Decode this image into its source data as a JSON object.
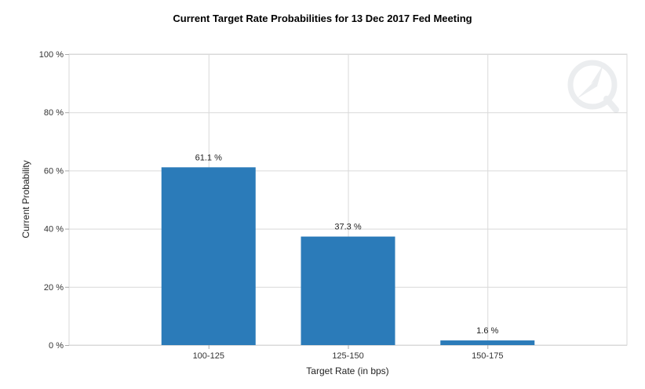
{
  "chart_data": {
    "type": "bar",
    "title": "Current Target Rate Probabilities for 13 Dec 2017 Fed Meeting",
    "xlabel": "Target Rate (in bps)",
    "ylabel": "Current Probability",
    "categories": [
      "100-125",
      "125-150",
      "150-175"
    ],
    "values": [
      61.1,
      37.3,
      1.6
    ],
    "data_labels": [
      "61.1 %",
      "37.3 %",
      "1.6 %"
    ],
    "ylim": [
      0,
      100
    ],
    "yticks": [
      0,
      20,
      40,
      60,
      80,
      100
    ],
    "ytick_labels": [
      "0 %",
      "20 %",
      "40 %",
      "60 %",
      "80 %",
      "100 %"
    ],
    "grid": true,
    "legend": "none",
    "colors": {
      "bar": "#2b7bb9",
      "grid": "#d9d9d9",
      "axis": "#aaaaaa"
    },
    "watermark_icon": "quikstrike-logo-icon"
  }
}
